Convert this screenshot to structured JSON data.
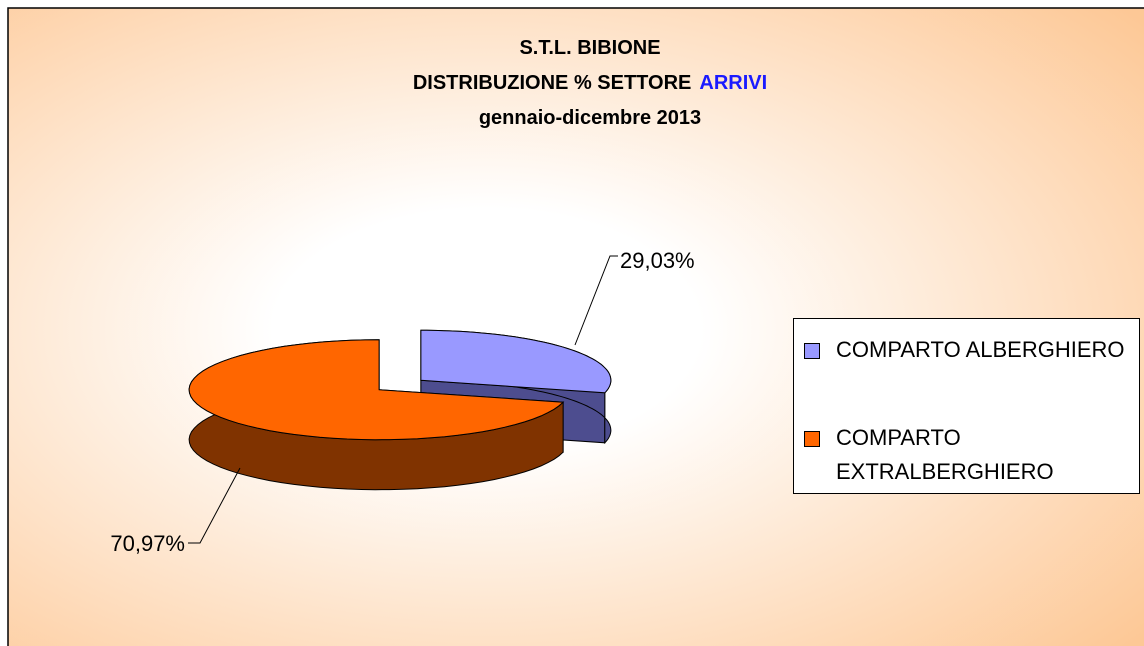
{
  "chart_data": {
    "type": "pie",
    "title": "S.T.L. BIBIONE",
    "subtitle": [
      "DISTRIBUZIONE % SETTORE",
      "ARRIVI"
    ],
    "period": "gennaio-dicembre 2013",
    "categories": [
      "COMPARTO ALBERGHIERO",
      "COMPARTO EXTRALBERGHIERO"
    ],
    "values": [
      29.03,
      70.97
    ],
    "value_labels": [
      "29,03%",
      "70,97%"
    ],
    "colors": [
      "#9999ff",
      "#ff6600"
    ],
    "side_colors": [
      "#4d4d8f",
      "#803300"
    ],
    "legend": "right"
  }
}
